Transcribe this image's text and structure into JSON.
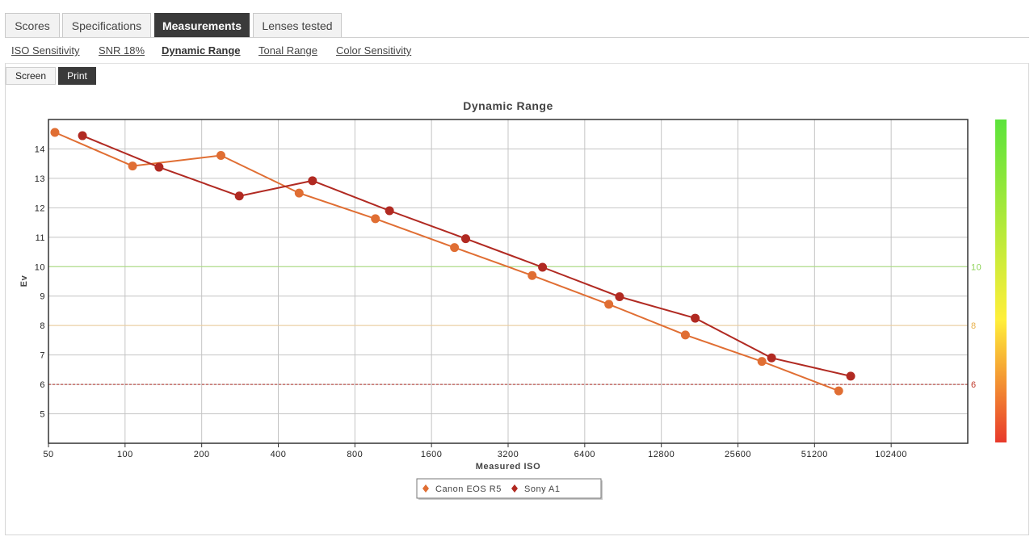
{
  "tabs": [
    {
      "label": "Scores",
      "active": false
    },
    {
      "label": "Specifications",
      "active": false
    },
    {
      "label": "Measurements",
      "active": true
    },
    {
      "label": "Lenses tested",
      "active": false
    }
  ],
  "subnav": [
    {
      "label": "ISO Sensitivity",
      "active": false
    },
    {
      "label": "SNR 18%",
      "active": false
    },
    {
      "label": "Dynamic Range",
      "active": true
    },
    {
      "label": "Tonal Range",
      "active": false
    },
    {
      "label": "Color Sensitivity",
      "active": false
    }
  ],
  "view_toggle": {
    "screen": "Screen",
    "print": "Print",
    "selected": "Print"
  },
  "chart_data": {
    "type": "line",
    "title": "Dynamic Range",
    "xlabel": "Measured ISO",
    "ylabel": "Ev",
    "x_scale": "log2",
    "x_ticks": [
      "50",
      "100",
      "200",
      "400",
      "800",
      "1600",
      "3200",
      "6400",
      "12800",
      "25600",
      "51200",
      "102400"
    ],
    "xlim": [
      50,
      204800
    ],
    "y_ticks": [
      "5",
      "6",
      "7",
      "8",
      "9",
      "10",
      "11",
      "12",
      "13",
      "14"
    ],
    "ylim": [
      4,
      15
    ],
    "grid": true,
    "reference_lines": [
      {
        "value": 10,
        "label": "10",
        "color": "#a7e07a",
        "style": "solid",
        "label_color": "#8fd35a"
      },
      {
        "value": 8,
        "label": "8",
        "color": "#f1cf9a",
        "style": "solid",
        "label_color": "#e8b04a"
      },
      {
        "value": 6,
        "label": "6",
        "color": "#b0322a",
        "style": "dashed",
        "label_color": "#c0392b"
      }
    ],
    "color_scale": {
      "top": "#5be33b",
      "middle": "#ffef3a",
      "bottom": "#e8392b"
    },
    "series": [
      {
        "name": "Canon EOS R5",
        "color": "#e06e33",
        "points": [
          [
            53,
            14.56
          ],
          [
            107,
            13.42
          ],
          [
            238,
            13.78
          ],
          [
            483,
            12.5
          ],
          [
            963,
            11.63
          ],
          [
            1970,
            10.65
          ],
          [
            3978,
            9.7
          ],
          [
            7960,
            8.72
          ],
          [
            15910,
            7.68
          ],
          [
            31800,
            6.78
          ],
          [
            63700,
            5.78
          ]
        ]
      },
      {
        "name": "Sony A1",
        "color": "#b12a22",
        "points": [
          [
            68,
            14.45
          ],
          [
            136,
            13.38
          ],
          [
            281,
            12.4
          ],
          [
            545,
            12.92
          ],
          [
            1094,
            11.9
          ],
          [
            2180,
            10.95
          ],
          [
            4369,
            9.98
          ],
          [
            8770,
            8.98
          ],
          [
            17390,
            8.25
          ],
          [
            34700,
            6.9
          ],
          [
            71000,
            6.28
          ]
        ]
      }
    ],
    "legend": {
      "placement": "bottom-center"
    }
  }
}
